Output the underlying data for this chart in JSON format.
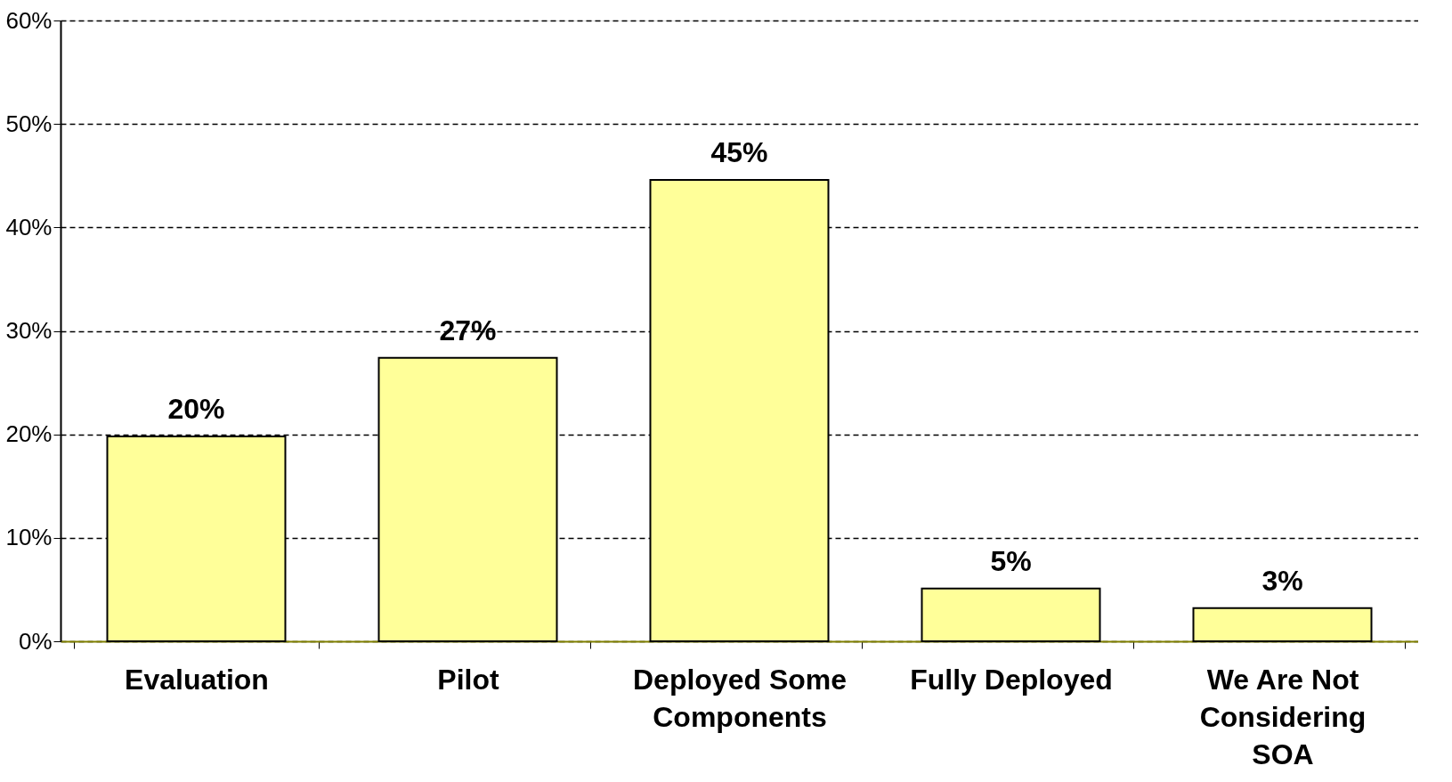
{
  "chart_data": {
    "type": "bar",
    "categories": [
      "Evaluation",
      "Pilot",
      "Deployed Some Components",
      "Fully Deployed",
      "We Are Not Considering SOA"
    ],
    "values": [
      19.8,
      27.4,
      44.6,
      5.1,
      3.2
    ],
    "value_labels": [
      "20%",
      "27%",
      "45%",
      "5%",
      "3%"
    ],
    "color": "#ffff99",
    "ylim": [
      0,
      60
    ],
    "yticks": [
      {
        "value": 0,
        "label": "0%"
      },
      {
        "value": 10,
        "label": "10%"
      },
      {
        "value": 20,
        "label": "20%"
      },
      {
        "value": 30,
        "label": "30%"
      },
      {
        "value": 40,
        "label": "40%"
      },
      {
        "value": 50,
        "label": "50%"
      },
      {
        "value": 60,
        "label": "60%"
      }
    ],
    "grid": "y"
  }
}
